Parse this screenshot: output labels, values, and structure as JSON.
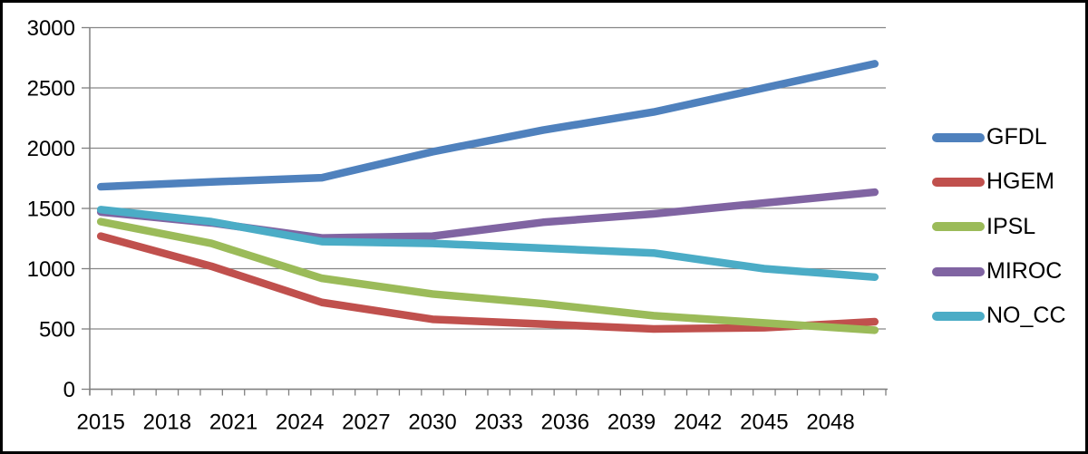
{
  "window": {
    "background": "#ffffff",
    "border_color": "#000000"
  },
  "chart_data": {
    "type": "line",
    "title": "",
    "xlabel": "",
    "ylabel": "",
    "x": [
      2015,
      2020,
      2025,
      2030,
      2035,
      2040,
      2045,
      2050
    ],
    "series": [
      {
        "name": "GFDL",
        "color": "#4F81BD",
        "values": [
          1680,
          1720,
          1755,
          1970,
          2150,
          2300,
          2500,
          2700
        ]
      },
      {
        "name": "HGEM",
        "color": "#C0504D",
        "values": [
          1270,
          1020,
          720,
          580,
          540,
          500,
          510,
          560
        ]
      },
      {
        "name": "IPSL",
        "color": "#9BBB59",
        "values": [
          1390,
          1210,
          920,
          790,
          710,
          610,
          550,
          490
        ]
      },
      {
        "name": "MIROC",
        "color": "#8064A2",
        "values": [
          1470,
          1380,
          1255,
          1270,
          1385,
          1455,
          1545,
          1635
        ]
      },
      {
        "name": "NO_CC",
        "color": "#4BACC6",
        "values": [
          1490,
          1390,
          1225,
          1210,
          1170,
          1130,
          1000,
          930
        ]
      }
    ],
    "ylim": [
      0,
      3000
    ],
    "yticks": [
      0,
      500,
      1000,
      1500,
      2000,
      2500,
      3000
    ],
    "ytick_labels": [
      "0",
      "500",
      "1000",
      "1500",
      "2000",
      "2500",
      "3000"
    ],
    "x_axis": {
      "start_year": 2015,
      "end_year": 2050,
      "minor_tick_every_years": 1
    },
    "xtick_labels": [
      "2015",
      "2018",
      "2021",
      "2024",
      "2027",
      "2030",
      "2033",
      "2036",
      "2039",
      "2042",
      "2045",
      "2048"
    ],
    "grid": true,
    "legend_position": "right",
    "legend_entries": [
      "GFDL",
      "HGEM",
      "IPSL",
      "MIROC",
      "NO_CC"
    ],
    "axis_color": "#808080",
    "gridline_color": "#868686",
    "text_color": "#000000"
  }
}
